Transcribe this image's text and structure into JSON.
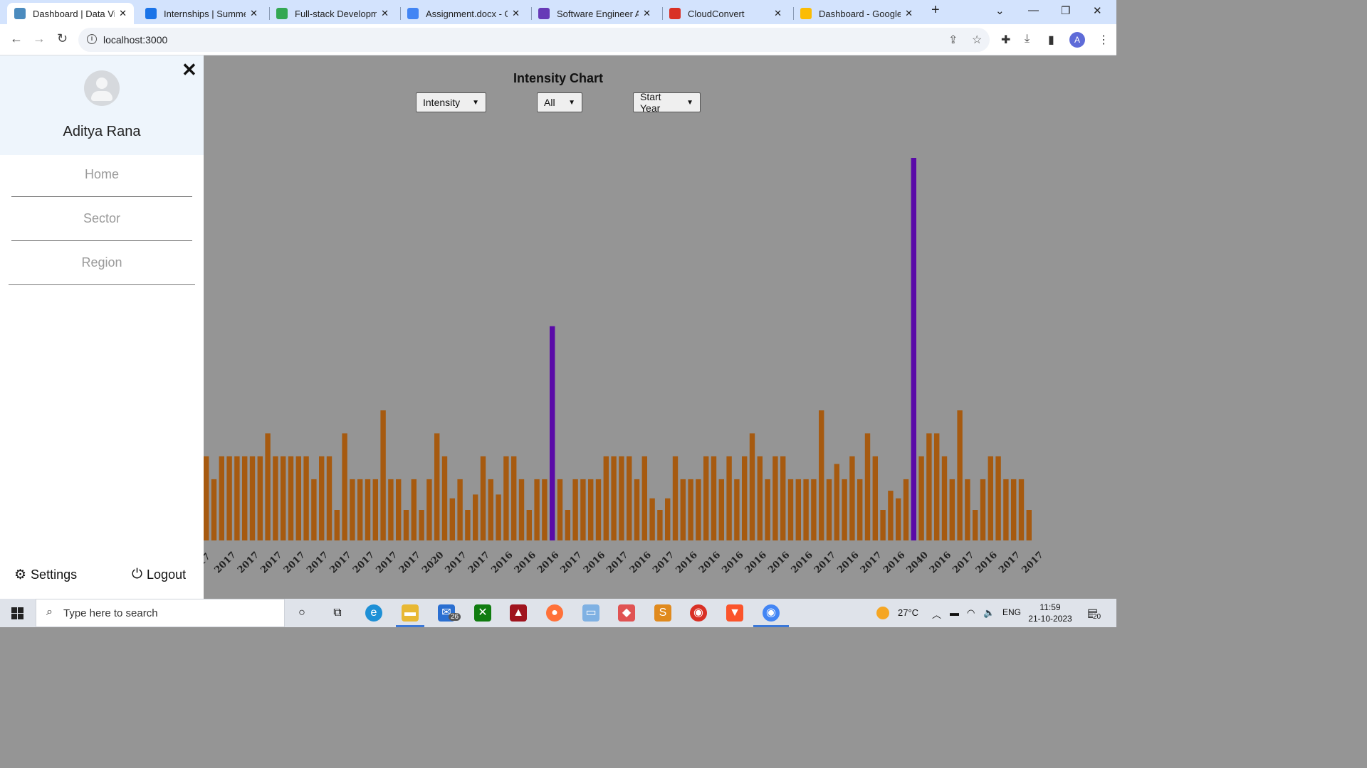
{
  "browser": {
    "tabs": [
      {
        "title": "Dashboard | Data Vis",
        "color": "#4b8bbe",
        "active": true
      },
      {
        "title": "Internships | Summer",
        "color": "#1a73e8",
        "active": false
      },
      {
        "title": "Full-stack Developme",
        "color": "#34a853",
        "active": false
      },
      {
        "title": "Assignment.docx - G",
        "color": "#4285f4",
        "active": false
      },
      {
        "title": "Software Engineer As",
        "color": "#673ab7",
        "active": false
      },
      {
        "title": "CloudConvert",
        "color": "#d93025",
        "active": false
      },
      {
        "title": "Dashboard - Google",
        "color": "#fbbc04",
        "active": false
      }
    ],
    "url": "localhost:3000"
  },
  "sidebar": {
    "user_name": "Aditya Rana",
    "nav": [
      {
        "label": "Home"
      },
      {
        "label": "Sector"
      },
      {
        "label": "Region"
      }
    ],
    "settings_label": "Settings",
    "logout_label": "Logout"
  },
  "main": {
    "title": "Intensity Chart",
    "filters": [
      {
        "value": "Intensity"
      },
      {
        "value": "All"
      },
      {
        "value": "Start Year"
      }
    ]
  },
  "chart_data": {
    "type": "bar",
    "title": "Intensity Chart",
    "ylim": [
      0,
      50
    ],
    "bar_color": "#a65a10",
    "highlight_color": "#5a0aa8",
    "highlight_indices": [
      45,
      92
    ],
    "values": [
      11,
      8,
      11,
      11,
      11,
      11,
      11,
      11,
      14,
      11,
      11,
      11,
      11,
      11,
      8,
      11,
      11,
      4,
      14,
      8,
      8,
      8,
      8,
      17,
      8,
      8,
      4,
      8,
      4,
      8,
      14,
      11,
      5.5,
      8,
      4,
      6,
      11,
      8,
      6,
      11,
      11,
      8,
      4,
      8,
      8,
      28,
      8,
      4,
      8,
      8,
      8,
      8,
      11,
      11,
      11,
      11,
      8,
      11,
      5.5,
      4,
      5.5,
      11,
      8,
      8,
      8,
      11,
      11,
      8,
      11,
      8,
      11,
      14,
      11,
      8,
      11,
      11,
      8,
      8,
      8,
      8,
      17,
      8,
      10,
      8,
      11,
      8,
      14,
      11,
      4,
      6.5,
      5.5,
      8,
      50,
      11,
      14,
      14,
      11,
      8,
      17,
      8,
      4,
      8,
      11,
      11,
      8,
      8,
      8,
      4
    ],
    "tick_labels": [
      "2017",
      "2017",
      "2017",
      "2017",
      "2017",
      "2017",
      "2017",
      "2017",
      "2017",
      "2020",
      "2017",
      "2017",
      "2016",
      "2016",
      "2016",
      "2017",
      "2016",
      "2017",
      "2016",
      "2017",
      "2016",
      "2016",
      "2016",
      "2016",
      "2016",
      "2016",
      "2017",
      "2016",
      "2017",
      "2016",
      "2040",
      "2016",
      "2017",
      "2016",
      "2017",
      "2017"
    ],
    "axis_label_start": "17"
  },
  "taskbar": {
    "search_placeholder": "Type here to search",
    "mail_badge": "26",
    "weather": "27°C",
    "lang": "ENG",
    "time": "11:59",
    "date": "21-10-2023",
    "notifications": "20"
  }
}
